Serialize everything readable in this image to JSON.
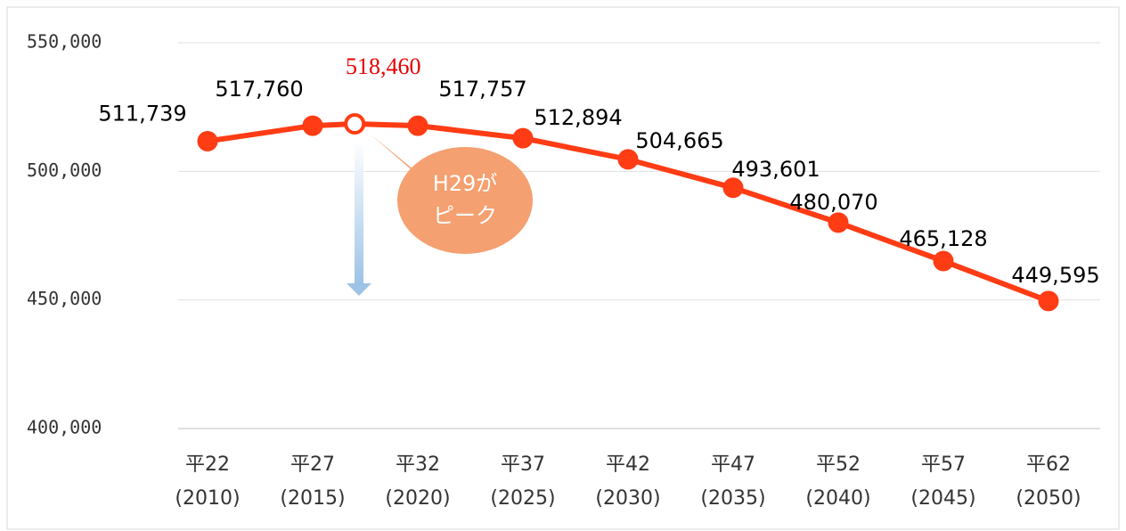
{
  "chart_data": {
    "type": "line",
    "x": [
      2010,
      2015,
      2017,
      2020,
      2025,
      2030,
      2035,
      2040,
      2045,
      2050
    ],
    "series": [
      {
        "color": "#ff3c14",
        "values": [
          511739,
          517760,
          518460,
          517757,
          512894,
          504665,
          493601,
          480070,
          465128,
          449595
        ],
        "value_labels": [
          "511,739",
          "517,760",
          "518,460",
          "517,757",
          "512,894",
          "504,665",
          "493,601",
          "480,070",
          "465,128",
          "449,595"
        ],
        "label_colors": [
          "#000000",
          "#000000",
          "#e60000",
          "#000000",
          "#000000",
          "#000000",
          "#000000",
          "#000000",
          "#000000",
          "#000000"
        ],
        "marker_fills": [
          "#ff3c14",
          "#ff3c14",
          "#ffffff",
          "#ff3c14",
          "#ff3c14",
          "#ff3c14",
          "#ff3c14",
          "#ff3c14",
          "#ff3c14",
          "#ff3c14"
        ]
      }
    ],
    "xlim": [
      2010,
      2050
    ],
    "xticks": [
      {
        "value": 2010,
        "label": "平22\n(2010)"
      },
      {
        "value": 2015,
        "label": "平27\n(2015)"
      },
      {
        "value": 2020,
        "label": "平32\n(2020)"
      },
      {
        "value": 2025,
        "label": "平37\n(2025)"
      },
      {
        "value": 2030,
        "label": "平42\n(2030)"
      },
      {
        "value": 2035,
        "label": "平47\n(2035)"
      },
      {
        "value": 2040,
        "label": "平52\n(2040)"
      },
      {
        "value": 2045,
        "label": "平57\n(2045)"
      },
      {
        "value": 2050,
        "label": "平62\n(2050)"
      }
    ],
    "ylim": [
      400000,
      550000
    ],
    "yticks": [
      {
        "value": 400000,
        "label": "400,000"
      },
      {
        "value": 450000,
        "label": "450,000"
      },
      {
        "value": 500000,
        "label": "500,000"
      },
      {
        "value": 550000,
        "label": "550,000"
      }
    ],
    "grid": true,
    "annotation": {
      "text": "H29が\nピーク",
      "color": "#f4a070"
    }
  }
}
